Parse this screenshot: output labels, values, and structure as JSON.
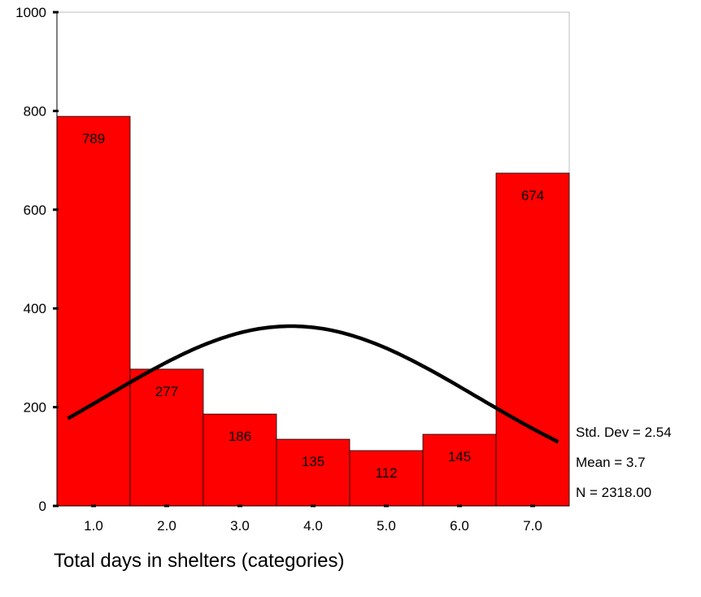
{
  "chart_data": {
    "type": "bar",
    "categories": [
      "1.0",
      "2.0",
      "3.0",
      "4.0",
      "5.0",
      "6.0",
      "7.0"
    ],
    "values": [
      789,
      277,
      186,
      135,
      112,
      145,
      674
    ],
    "bar_labels": [
      "789",
      "277",
      "186",
      "135",
      "112",
      "145",
      "674"
    ],
    "ylim": [
      0,
      1000
    ],
    "yticks": [
      0,
      200,
      400,
      600,
      800,
      1000
    ],
    "xlabel": "Total days in shelters (categories)",
    "ylabel": "",
    "title": "",
    "bar_color": "#ff0000",
    "curve_color": "#000000",
    "normal_curve": {
      "mean": 3.7,
      "std_dev": 2.54,
      "n": 2318
    },
    "grid": false
  },
  "stats": {
    "std_dev": "Std. Dev = 2.54",
    "mean": "Mean = 3.7",
    "n": "N = 2318.00"
  }
}
